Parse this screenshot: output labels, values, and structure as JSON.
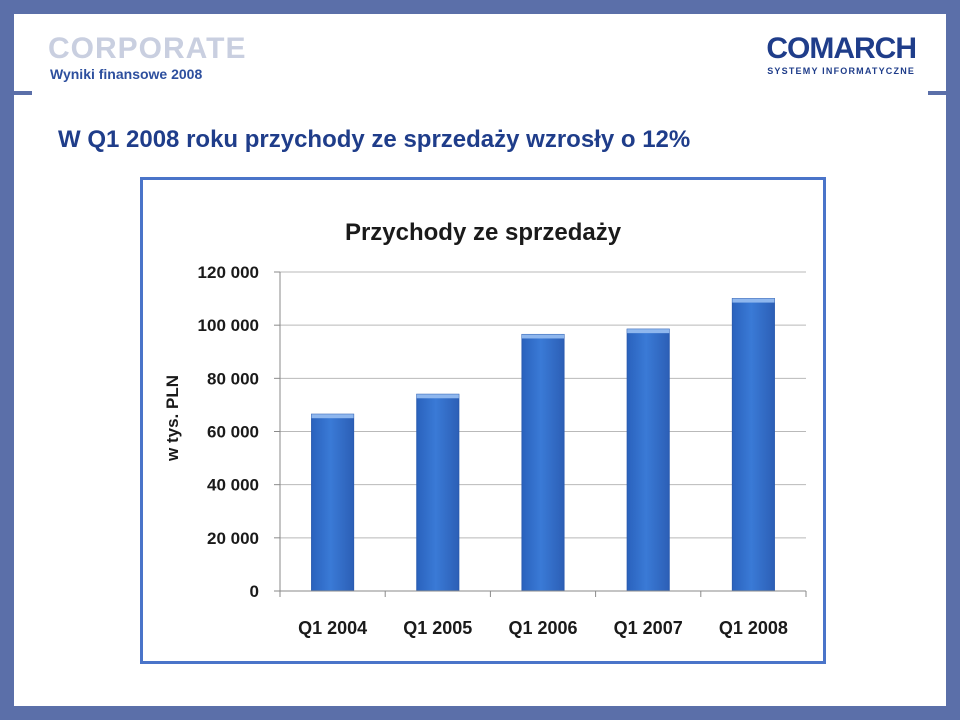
{
  "header": {
    "brand": "CORPORATE",
    "subtitle": "Wyniki finansowe 2008",
    "logo_main": "COMARCH",
    "logo_sub": "SYSTEMY INFORMATYCZNE"
  },
  "headline": "W Q1 2008 roku przychody ze sprzedaży wzrosły o 12%",
  "colors": {
    "border": "#5b6fa9",
    "title": "#1f3d8a",
    "bar": "#3a7ad6",
    "chart_frame": "#4a74c9"
  },
  "chart_data": {
    "type": "bar",
    "title": "Przychody ze sprzedaży",
    "xlabel": "",
    "ylabel": "w tys. PLN",
    "categories": [
      "Q1 2004",
      "Q1 2005",
      "Q1 2006",
      "Q1 2007",
      "Q1 2008"
    ],
    "values": [
      66500,
      74000,
      96500,
      98500,
      110000
    ],
    "ylim": [
      0,
      120000
    ],
    "yticks": [
      0,
      20000,
      40000,
      60000,
      80000,
      100000,
      120000
    ],
    "ytick_labels": [
      "0",
      "20 000",
      "40 000",
      "60 000",
      "80 000",
      "100 000",
      "120 000"
    ],
    "grid": true,
    "legend": "none"
  }
}
